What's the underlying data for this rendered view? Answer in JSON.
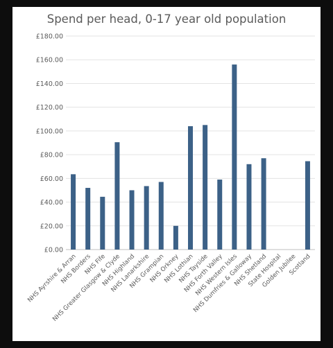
{
  "chart_data": {
    "type": "bar",
    "title": "Spend per head, 0-17 year old population",
    "xlabel": "",
    "ylabel": "",
    "ylim": [
      0,
      180
    ],
    "yticks": [
      "£0.00",
      "£20.00",
      "£40.00",
      "£60.00",
      "£80.00",
      "£100.00",
      "£120.00",
      "£140.00",
      "£160.00",
      "£180.00"
    ],
    "grid": true,
    "bar_color": "#3c6187",
    "categories": [
      "NHS Ayrshire & Arran",
      "NHS Borders",
      "NHS Fife",
      "NHS Greater Glasgow & Clyde",
      "NHS Highland",
      "NHS Lanarkshire",
      "NHS Grampian",
      "NHS Orkney",
      "NHS Lothian",
      "NHS Tayside",
      "NHS Forth Valley",
      "NHS Western Isles",
      "NHS Dumfries & Galloway",
      "NHS Shetland",
      "State Hospital",
      "Golden Jubilee",
      "Scotland"
    ],
    "values": [
      63.5,
      52,
      44.5,
      90.5,
      50,
      53.5,
      57,
      20,
      104,
      105,
      59,
      156,
      72,
      77,
      0,
      0,
      74.5
    ]
  }
}
